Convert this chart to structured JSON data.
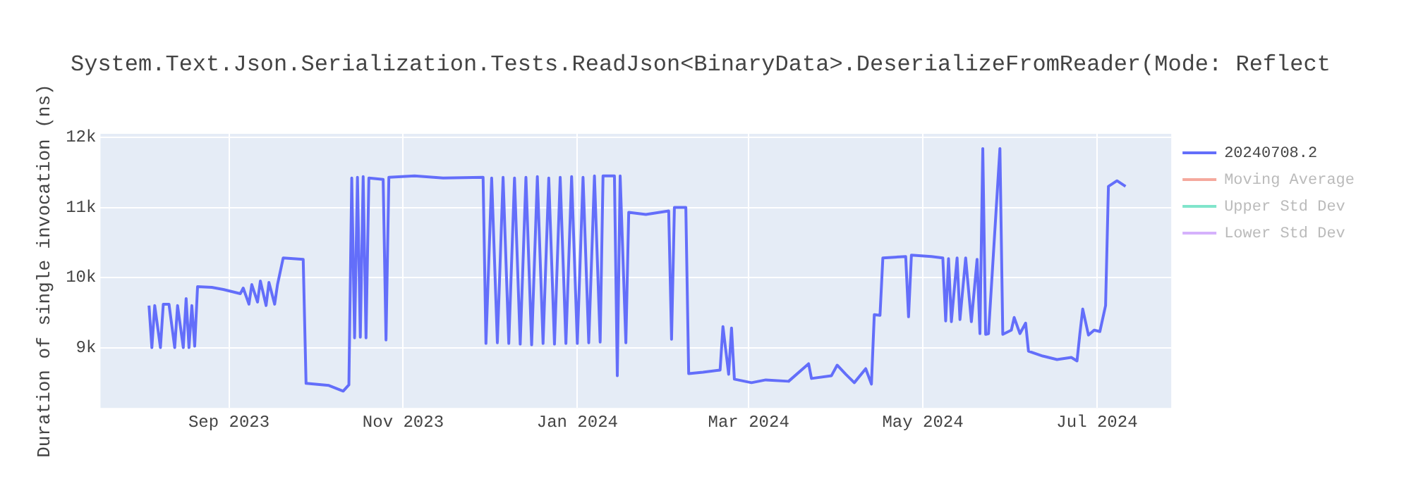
{
  "chart_data": {
    "type": "line",
    "title": "System.Text.Json.Serialization.Tests.ReadJson<BinaryData>.DeserializeFromReader(Mode: Reflect",
    "ylabel": "Duration of single invocation (ns)",
    "x": [
      "2023-08-04",
      "2023-08-05",
      "2023-08-06",
      "2023-08-08",
      "2023-08-09",
      "2023-08-11",
      "2023-08-13",
      "2023-08-14",
      "2023-08-16",
      "2023-08-17",
      "2023-08-18",
      "2023-08-19",
      "2023-08-20",
      "2023-08-21",
      "2023-08-26",
      "2023-08-30",
      "2023-09-05",
      "2023-09-06",
      "2023-09-08",
      "2023-09-09",
      "2023-09-11",
      "2023-09-12",
      "2023-09-14",
      "2023-09-15",
      "2023-09-17",
      "2023-09-18",
      "2023-09-20",
      "2023-09-27",
      "2023-09-28",
      "2023-10-06",
      "2023-10-11",
      "2023-10-13",
      "2023-10-14",
      "2023-10-15",
      "2023-10-16",
      "2023-10-17",
      "2023-10-18",
      "2023-10-19",
      "2023-10-20",
      "2023-10-25",
      "2023-10-26",
      "2023-10-27",
      "2023-11-05",
      "2023-11-15",
      "2023-11-29",
      "2023-11-30",
      "2023-12-02",
      "2023-12-04",
      "2023-12-06",
      "2023-12-08",
      "2023-12-10",
      "2023-12-12",
      "2023-12-14",
      "2023-12-16",
      "2023-12-18",
      "2023-12-20",
      "2023-12-22",
      "2023-12-24",
      "2023-12-26",
      "2023-12-28",
      "2023-12-30",
      "2024-01-01",
      "2024-01-03",
      "2024-01-05",
      "2024-01-07",
      "2024-01-09",
      "2024-01-10",
      "2024-01-14",
      "2024-01-15",
      "2024-01-16",
      "2024-01-18",
      "2024-01-19",
      "2024-01-25",
      "2024-02-02",
      "2024-02-03",
      "2024-02-04",
      "2024-02-08",
      "2024-02-09",
      "2024-02-14",
      "2024-02-20",
      "2024-02-21",
      "2024-02-23",
      "2024-02-24",
      "2024-02-25",
      "2024-03-02",
      "2024-03-07",
      "2024-03-15",
      "2024-03-22",
      "2024-03-23",
      "2024-03-30",
      "2024-04-01",
      "2024-04-04",
      "2024-04-07",
      "2024-04-11",
      "2024-04-13",
      "2024-04-14",
      "2024-04-16",
      "2024-04-17",
      "2024-04-25",
      "2024-04-26",
      "2024-04-27",
      "2024-05-04",
      "2024-05-08",
      "2024-05-09",
      "2024-05-10",
      "2024-05-11",
      "2024-05-13",
      "2024-05-14",
      "2024-05-16",
      "2024-05-18",
      "2024-05-20",
      "2024-05-21",
      "2024-05-22",
      "2024-05-23",
      "2024-05-24",
      "2024-05-28",
      "2024-05-29",
      "2024-06-01",
      "2024-06-02",
      "2024-06-04",
      "2024-06-06",
      "2024-06-07",
      "2024-06-12",
      "2024-06-17",
      "2024-06-22",
      "2024-06-24",
      "2024-06-25",
      "2024-06-26",
      "2024-06-28",
      "2024-06-30",
      "2024-07-02",
      "2024-07-04",
      "2024-07-05",
      "2024-07-08",
      "2024-07-11"
    ],
    "series": [
      {
        "name": "20240708.2",
        "color": "#636efa",
        "values": [
          9600,
          9000,
          9600,
          9000,
          9620,
          9620,
          9000,
          9600,
          9000,
          9700,
          9000,
          9600,
          9020,
          9870,
          9860,
          9830,
          9770,
          9850,
          9620,
          9900,
          9650,
          9950,
          9600,
          9930,
          9620,
          9900,
          10280,
          10260,
          8490,
          8460,
          8380,
          8470,
          11420,
          9140,
          11430,
          9150,
          11440,
          9140,
          11420,
          11400,
          9110,
          11430,
          11450,
          11420,
          11430,
          9060,
          11420,
          9070,
          11430,
          9060,
          11420,
          9050,
          11430,
          9040,
          11440,
          9060,
          11420,
          9050,
          11430,
          9060,
          11440,
          9060,
          11430,
          9070,
          11450,
          9080,
          11450,
          11450,
          8600,
          11450,
          9070,
          10930,
          10900,
          10950,
          9120,
          11000,
          11000,
          8630,
          8650,
          8680,
          9300,
          8620,
          9280,
          8550,
          8500,
          8540,
          8520,
          8770,
          8560,
          8600,
          8750,
          8620,
          8500,
          8700,
          8480,
          9470,
          9460,
          10280,
          10300,
          9440,
          10320,
          10300,
          10280,
          9380,
          10270,
          9370,
          10280,
          9400,
          10280,
          9370,
          10260,
          9200,
          11840,
          9190,
          9200,
          11840,
          9190,
          9250,
          9430,
          9200,
          9350,
          8950,
          8880,
          8830,
          8860,
          8810,
          9200,
          9550,
          9180,
          9250,
          9230,
          9600,
          11300,
          11380,
          11300
        ]
      },
      {
        "name": "Moving Average",
        "color": "#f5a99d",
        "values": [
          null,
          null,
          null,
          null,
          null,
          null,
          null,
          null,
          null,
          null,
          null,
          null,
          null,
          null,
          null,
          null,
          null,
          null,
          null,
          null,
          null,
          null,
          null,
          null,
          null,
          null,
          null,
          null,
          null,
          null,
          null,
          null,
          null,
          null,
          null,
          null,
          null,
          null,
          null,
          null,
          null,
          null,
          null,
          null,
          null,
          null,
          null,
          null,
          null,
          null,
          null,
          null,
          null,
          null,
          null,
          null,
          null,
          null,
          null,
          null,
          null,
          null,
          null,
          null,
          null,
          null,
          null,
          null,
          null,
          null,
          null,
          null,
          null,
          null,
          null,
          null,
          null,
          null,
          null,
          null,
          null,
          null,
          null,
          null,
          null,
          null,
          null,
          null,
          null,
          null,
          null,
          null,
          null,
          null,
          null,
          null,
          null,
          null,
          null,
          null,
          null,
          null,
          null,
          null,
          null,
          null,
          null,
          null,
          null,
          null,
          null,
          null,
          null,
          null,
          null,
          null,
          null,
          null,
          null,
          null,
          null,
          null,
          null,
          null,
          null,
          null,
          null,
          null,
          null,
          null,
          null,
          null,
          null,
          null,
          null
        ]
      },
      {
        "name": "Upper Std Dev",
        "color": "#80e5cb",
        "values": [
          null,
          null,
          null,
          null,
          null,
          null,
          null,
          null,
          null,
          null,
          null,
          null,
          null,
          null,
          null,
          null,
          null,
          null,
          null,
          null,
          null,
          null,
          null,
          null,
          null,
          null,
          null,
          null,
          null,
          null,
          null,
          null,
          null,
          null,
          null,
          null,
          null,
          null,
          null,
          null,
          null,
          null,
          null,
          null,
          null,
          null,
          null,
          null,
          null,
          null,
          null,
          null,
          null,
          null,
          null,
          null,
          null,
          null,
          null,
          null,
          null,
          null,
          null,
          null,
          null,
          null,
          null,
          null,
          null,
          null,
          null,
          null,
          null,
          null,
          null,
          null,
          null,
          null,
          null,
          null,
          null,
          null,
          null,
          null,
          null,
          null,
          null,
          null,
          null,
          null,
          null,
          null,
          null,
          null,
          null,
          null,
          null,
          null,
          null,
          null,
          null,
          null,
          null,
          null,
          null,
          null,
          null,
          null,
          null,
          null,
          null,
          null,
          null,
          null,
          null,
          null,
          null,
          null,
          null,
          null,
          null,
          null,
          null,
          null,
          null,
          null,
          null,
          null,
          null,
          null,
          null,
          null,
          null,
          null,
          null
        ]
      },
      {
        "name": "Lower Std Dev",
        "color": "#d5b1fc",
        "values": [
          null,
          null,
          null,
          null,
          null,
          null,
          null,
          null,
          null,
          null,
          null,
          null,
          null,
          null,
          null,
          null,
          null,
          null,
          null,
          null,
          null,
          null,
          null,
          null,
          null,
          null,
          null,
          null,
          null,
          null,
          null,
          null,
          null,
          null,
          null,
          null,
          null,
          null,
          null,
          null,
          null,
          null,
          null,
          null,
          null,
          null,
          null,
          null,
          null,
          null,
          null,
          null,
          null,
          null,
          null,
          null,
          null,
          null,
          null,
          null,
          null,
          null,
          null,
          null,
          null,
          null,
          null,
          null,
          null,
          null,
          null,
          null,
          null,
          null,
          null,
          null,
          null,
          null,
          null,
          null,
          null,
          null,
          null,
          null,
          null,
          null,
          null,
          null,
          null,
          null,
          null,
          null,
          null,
          null,
          null,
          null,
          null,
          null,
          null,
          null,
          null,
          null,
          null,
          null,
          null,
          null,
          null,
          null,
          null,
          null,
          null,
          null,
          null,
          null,
          null,
          null,
          null,
          null,
          null,
          null,
          null,
          null,
          null,
          null,
          null,
          null,
          null,
          null,
          null,
          null,
          null,
          null,
          null,
          null,
          null
        ]
      }
    ],
    "xlim": [
      "2023-07-18",
      "2024-07-27"
    ],
    "xticks": [
      {
        "value": "2023-09-01",
        "label": "Sep 2023"
      },
      {
        "value": "2023-11-01",
        "label": "Nov 2023"
      },
      {
        "value": "2024-01-01",
        "label": "Jan 2024"
      },
      {
        "value": "2024-03-01",
        "label": "Mar 2024"
      },
      {
        "value": "2024-05-01",
        "label": "May 2024"
      },
      {
        "value": "2024-07-01",
        "label": "Jul 2024"
      }
    ],
    "ylim": [
      8140,
      12050
    ],
    "yticks": [
      {
        "value": 9000,
        "label": "9k"
      },
      {
        "value": 10000,
        "label": "10k"
      },
      {
        "value": 11000,
        "label": "11k"
      },
      {
        "value": 12000,
        "label": "12k"
      }
    ],
    "grid": true,
    "legend": "right",
    "marker": "none",
    "line_style": "solid"
  }
}
